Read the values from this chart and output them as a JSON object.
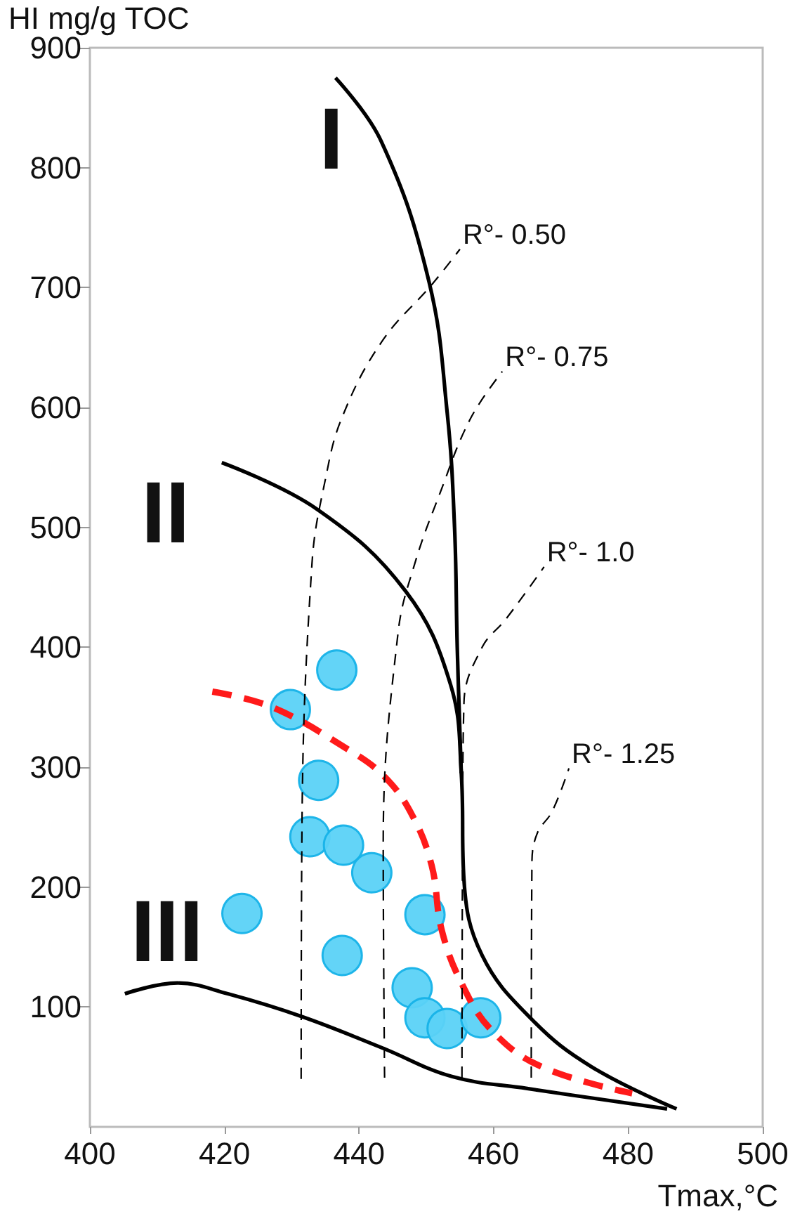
{
  "chart_data": {
    "type": "line",
    "xlabel": "Tmax,°C",
    "ylabel": "HI mg/g TOC",
    "xlim": [
      400,
      500
    ],
    "xticks": [
      400,
      420,
      440,
      460,
      480,
      500
    ],
    "ylim": [
      0,
      900
    ],
    "yticks": [
      100,
      200,
      300,
      400,
      500,
      600,
      700,
      800,
      900
    ],
    "grid": false,
    "series": [
      {
        "name": "I",
        "color": "#000000",
        "line_style": "solid",
        "x": [
          436.5,
          443.3,
          450.4,
          453.1,
          454.2,
          454.6,
          455.2
        ],
        "values": [
          875,
          822,
          705,
          596,
          500,
          400,
          295
        ]
      },
      {
        "name": "II",
        "color": "#000000",
        "line_style": "solid",
        "x": [
          419.6,
          433.8,
          446.9,
          453.6,
          455.2,
          455.6,
          458.3,
          465.8,
          474.6,
          487.2
        ],
        "values": [
          554,
          515,
          447,
          369,
          295,
          206,
          143,
          89,
          50,
          15
        ]
      },
      {
        "name": "III",
        "color": "#000000",
        "line_style": "solid",
        "x": [
          405.2,
          413,
          420.5,
          431.5,
          443.4,
          453.8,
          465,
          485.8
        ],
        "values": [
          111,
          120,
          111,
          92,
          66,
          42,
          32,
          15
        ]
      },
      {
        "color": "#ff1a1a",
        "line_style": "dashed",
        "x": [
          418.2,
          427.1,
          438.3,
          443.8,
          447.9,
          450.8,
          452.3,
          455.4,
          459.8,
          467.2,
          480.6
        ],
        "values": [
          363,
          350,
          315,
          292,
          260,
          218,
          164,
          118,
          80,
          50,
          28
        ]
      },
      {
        "name": "R°- 0.50",
        "color": "#000000",
        "line_style": "dashed",
        "x": [
          431.4,
          431.5,
          433,
          435,
          437.5,
          443.4,
          450.9,
          455
        ],
        "values": [
          40,
          236,
          469,
          540,
          592,
          655,
          703,
          732
        ]
      },
      {
        "name": "R°- 0.75",
        "color": "#000000",
        "line_style": "dashed",
        "x": [
          443.8,
          443.6,
          445.8,
          448.3,
          452,
          456.5,
          461.3
        ],
        "values": [
          41,
          236,
          412,
          470,
          528,
          590,
          630
        ]
      },
      {
        "name": "R°- 1.0",
        "color": "#000000",
        "line_style": "dashed",
        "x": [
          455.3,
          455.4,
          455.6,
          458.3,
          461.9,
          467.5
        ],
        "values": [
          41,
          250,
          354,
          400,
          424,
          467
        ]
      },
      {
        "name": "R°- 1.25",
        "color": "#000000",
        "line_style": "dashed",
        "x": [
          465.6,
          465.7,
          466.5,
          468.7,
          471.2
        ],
        "values": [
          41,
          220,
          245,
          263,
          299
        ]
      },
      {
        "type": "scatter",
        "color": "#5bd2f7",
        "marker": "circle",
        "x": [
          422.6,
          429.8,
          436.7,
          434,
          432.7,
          437.7,
          441.9,
          437.5,
          449.8,
          447.9,
          449.8,
          453.1,
          458.1
        ],
        "values": [
          178,
          348,
          381,
          289,
          242,
          235,
          212,
          143,
          177,
          116,
          91,
          82,
          91
        ]
      }
    ]
  }
}
